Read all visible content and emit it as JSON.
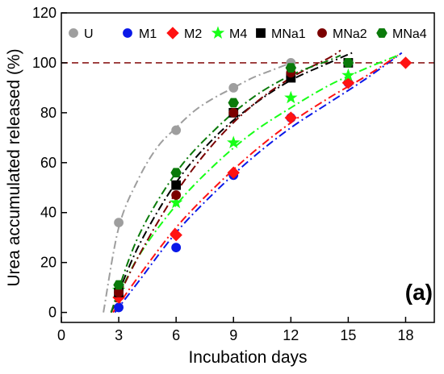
{
  "chart_data": {
    "type": "scatter",
    "xlabel": "Incubation days",
    "ylabel": "Urea accumulated released (%)",
    "xlim": [
      0,
      19.5
    ],
    "ylim": [
      -4,
      120
    ],
    "xticks": [
      0,
      3,
      6,
      9,
      12,
      15,
      18
    ],
    "yticks": [
      0,
      20,
      40,
      60,
      80,
      100,
      120
    ],
    "panel_label": "(a)",
    "reference_line": {
      "y": 100,
      "color": "#8b1a1a",
      "style": "dashed"
    },
    "grid": false,
    "legend_position": "top",
    "series": [
      {
        "name": "U",
        "marker": "circle",
        "color": "#9e9e9e",
        "x": [
          3,
          6,
          9,
          12
        ],
        "y": [
          36,
          73,
          90,
          100
        ],
        "fit": {
          "x": [
            2.2,
            3,
            4,
            5,
            6,
            7,
            8,
            9,
            10,
            11,
            12
          ],
          "y": [
            0,
            34,
            53,
            66,
            74,
            81,
            86,
            90,
            94,
            97,
            100
          ]
        }
      },
      {
        "name": "M1",
        "marker": "circle",
        "color": "#0a18e8",
        "x": [
          3,
          6,
          9,
          12,
          15
        ],
        "y": [
          2,
          26,
          55,
          78,
          92
        ],
        "fit": {
          "x": [
            2.8,
            4,
            6,
            8,
            10,
            12,
            14,
            16,
            17.8
          ],
          "y": [
            0,
            12,
            32,
            48,
            62,
            74,
            84,
            94,
            104
          ]
        }
      },
      {
        "name": "M2",
        "marker": "diamond",
        "color": "#ff1212",
        "x": [
          3,
          6,
          9,
          12,
          15,
          18
        ],
        "y": [
          6,
          31,
          56,
          78,
          92,
          100
        ],
        "fit": {
          "x": [
            2.7,
            4,
            6,
            8,
            10,
            12,
            14,
            16,
            17.6
          ],
          "y": [
            0,
            14,
            34,
            50,
            64,
            76,
            86,
            95,
            103
          ]
        }
      },
      {
        "name": "M4",
        "marker": "star",
        "color": "#17ff17",
        "x": [
          3,
          6,
          9,
          12,
          15
        ],
        "y": [
          9,
          44,
          68,
          86,
          95
        ],
        "fit": {
          "x": [
            2.6,
            4,
            6,
            8,
            10,
            12,
            14,
            16,
            17.6
          ],
          "y": [
            0,
            22,
            43,
            59,
            72,
            82,
            91,
            98,
            103
          ]
        }
      },
      {
        "name": "MNa1",
        "marker": "square",
        "color": "#000000",
        "x": [
          3,
          6,
          9,
          12,
          15
        ],
        "y": [
          8,
          51,
          80,
          94,
          100
        ],
        "fit": {
          "x": [
            2.6,
            4,
            6,
            8,
            10,
            12,
            14,
            15.2
          ],
          "y": [
            0,
            26,
            52,
            70,
            83,
            93,
            100,
            104
          ]
        }
      },
      {
        "name": "MNa2",
        "marker": "circle",
        "color": "#7b0000",
        "x": [
          3,
          6,
          9,
          12
        ],
        "y": [
          8,
          47,
          80,
          96
        ],
        "fit": {
          "x": [
            2.6,
            4,
            6,
            8,
            10,
            12,
            14,
            14.6
          ],
          "y": [
            0,
            22,
            48,
            68,
            83,
            94,
            102,
            105
          ]
        }
      },
      {
        "name": "MNa4",
        "marker": "hexagon",
        "color": "#0a7a0a",
        "x": [
          3,
          6,
          9,
          12,
          15
        ],
        "y": [
          11,
          56,
          84,
          98,
          100
        ],
        "fit": {
          "x": [
            2.6,
            4,
            6,
            8,
            10,
            12,
            14,
            14.6
          ],
          "y": [
            0,
            30,
            56,
            73,
            86,
            95,
            101,
            103
          ]
        }
      }
    ]
  }
}
